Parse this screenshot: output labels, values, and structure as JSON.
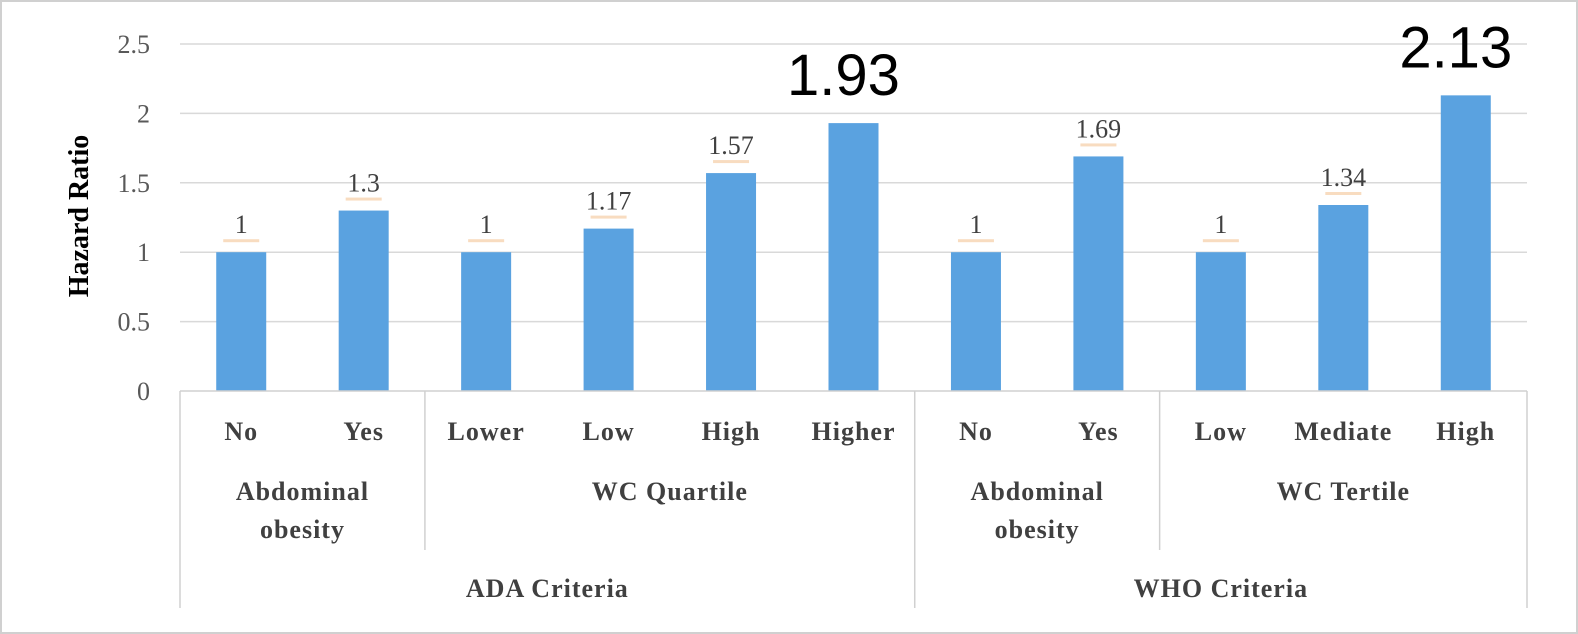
{
  "chart_data": {
    "type": "bar",
    "title": "",
    "ylabel": "Hazard Ratio",
    "ylim": [
      0,
      2.5
    ],
    "yticks": [
      "0",
      "0.5",
      "1",
      "1.5",
      "2",
      "2.5"
    ],
    "grid": true,
    "bar_color": "#5aa2e0",
    "categories": [
      {
        "label": "No",
        "value": 1,
        "value_label": "1",
        "emphasis": false
      },
      {
        "label": "Yes",
        "value": 1.3,
        "value_label": "1.3",
        "emphasis": false
      },
      {
        "label": "Lower",
        "value": 1,
        "value_label": "1",
        "emphasis": false
      },
      {
        "label": "Low",
        "value": 1.17,
        "value_label": "1.17",
        "emphasis": false
      },
      {
        "label": "High",
        "value": 1.57,
        "value_label": "1.57",
        "emphasis": false
      },
      {
        "label": "Higher",
        "value": 1.93,
        "value_label": "1.93",
        "emphasis": true
      },
      {
        "label": "No",
        "value": 1,
        "value_label": "1",
        "emphasis": false
      },
      {
        "label": "Yes",
        "value": 1.69,
        "value_label": "1.69",
        "emphasis": false
      },
      {
        "label": "Low",
        "value": 1,
        "value_label": "1",
        "emphasis": false
      },
      {
        "label": "Mediate",
        "value": 1.34,
        "value_label": "1.34",
        "emphasis": false
      },
      {
        "label": "High",
        "value": 2.13,
        "value_label": "2.13",
        "emphasis": true
      }
    ],
    "groups": [
      {
        "label_lines": [
          "Abdominal",
          "obesity"
        ],
        "start": 0,
        "count": 2
      },
      {
        "label_lines": [
          "WC Quartile"
        ],
        "start": 2,
        "count": 4
      },
      {
        "label_lines": [
          "Abdominal",
          "obesity"
        ],
        "start": 6,
        "count": 2
      },
      {
        "label_lines": [
          "WC Tertile"
        ],
        "start": 8,
        "count": 3
      }
    ],
    "supergroups": [
      {
        "label": "ADA Criteria",
        "start": 0,
        "count": 6
      },
      {
        "label": "WHO Criteria",
        "start": 6,
        "count": 5
      }
    ]
  }
}
